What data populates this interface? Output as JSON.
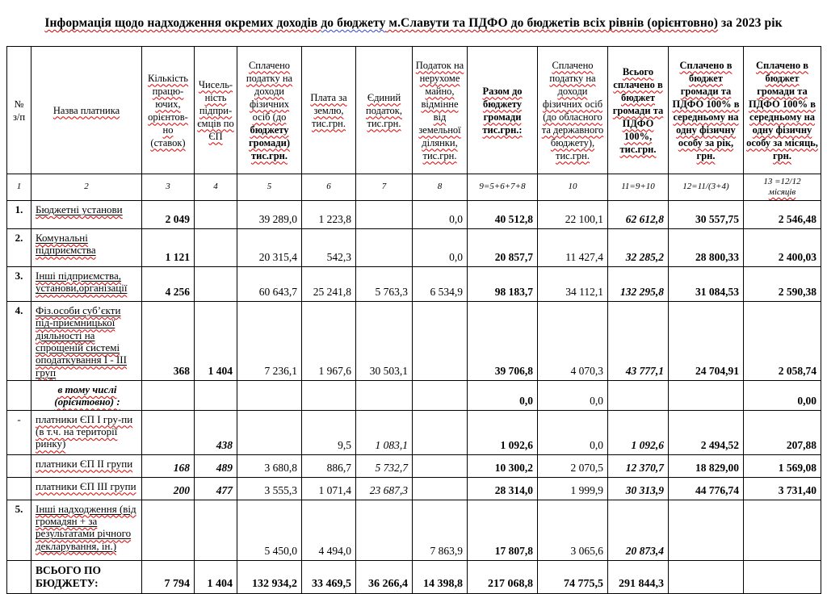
{
  "title": {
    "p1": "Інформація щодо надходження окремих доходів ",
    "p2": "до бюджету",
    "p3": " м.Славути та ПДФО до бюджетів всіх рівнів (орієнтовно)",
    "p4": " за 2023 рік"
  },
  "colors": {
    "spell_red": "#d40000",
    "spell_blue": "#3344cc",
    "border": "#000000",
    "text": "#000000"
  },
  "table": {
    "headers": [
      {
        "t": "№ з/п",
        "sp": false
      },
      {
        "t": "Назва платника"
      },
      {
        "t": "Кількість працю-ючих, орієнтов-но (ставок)"
      },
      {
        "t": "Чисель-ність підпри-ємців по ЄП"
      },
      {
        "t": "Сплачено податку на доходи фізичних осіб (до ",
        "t2": "бюджету громади) тис.грн."
      },
      {
        "t": "Плата за землю, тис.грн."
      },
      {
        "t": "Єдиний податок, тис.грн."
      },
      {
        "t": "Податок на нерухоме майно, відмінне від земельної ділянки, тис.грн."
      },
      {
        "t": "Разом до бюджету громади тис.грн.:",
        "b": true
      },
      {
        "t": "Сплачено податку на доходи фізичних осіб (до обласного та державного бюджету), тис.грн."
      },
      {
        "t": "Всього сплачено в бюджет громади та ПДФО 100%, тис.грн.",
        "b": true
      },
      {
        "t": "Сплачено в бюджет громади та ПДФО 100% в середньому на одну фізичну особу за рік, грн.",
        "b": true
      },
      {
        "t": "Сплачено в бюджет громади та ПДФО 100% в середньому на одну фізичну особу за місяць, грн.",
        "b": true
      }
    ],
    "numbering": [
      {
        "t": "1"
      },
      {
        "t": "2"
      },
      {
        "t": "3"
      },
      {
        "t": "4"
      },
      {
        "t": "5"
      },
      {
        "t": "6"
      },
      {
        "t": "7"
      },
      {
        "t": "8"
      },
      {
        "t": "9=5+6+7+8"
      },
      {
        "t": "10"
      },
      {
        "t": "11=9+10"
      },
      {
        "t": "12=11/(3+4)"
      },
      {
        "t": "13 =12/12",
        "sp": "місяців"
      }
    ],
    "rows": [
      {
        "num": "1.",
        "name": "Бюджетні установи",
        "ns": "u",
        "cells": [
          {
            "v": "2 049",
            "s": "b"
          },
          {
            "v": ""
          },
          {
            "v": "39 289,0"
          },
          {
            "v": "1 223,8"
          },
          {
            "v": ""
          },
          {
            "v": "0,0"
          },
          {
            "v": "40 512,8",
            "s": "b"
          },
          {
            "v": "22 100,1"
          },
          {
            "v": "62 612,8",
            "s": "bi"
          },
          {
            "v": "30 557,75",
            "s": "b"
          },
          {
            "v": "2 546,48",
            "s": "b"
          }
        ]
      },
      {
        "num": "2.",
        "name": "Комунальні підприємства",
        "ns": "u",
        "cells": [
          {
            "v": "1 121",
            "s": "b"
          },
          {
            "v": ""
          },
          {
            "v": "20 315,4"
          },
          {
            "v": "542,3"
          },
          {
            "v": ""
          },
          {
            "v": "0,0"
          },
          {
            "v": "20 857,7",
            "s": "b"
          },
          {
            "v": "11 427,4"
          },
          {
            "v": "32 285,2",
            "s": "bi"
          },
          {
            "v": "28 800,33",
            "s": "b"
          },
          {
            "v": "2 400,03",
            "s": "b"
          }
        ]
      },
      {
        "num": "3.",
        "name": "Інші підприємства, установи,організації",
        "ns": "u",
        "cells": [
          {
            "v": "4 256",
            "s": "b"
          },
          {
            "v": ""
          },
          {
            "v": "60 643,7"
          },
          {
            "v": "25 241,8"
          },
          {
            "v": "5 763,3"
          },
          {
            "v": "6 534,9"
          },
          {
            "v": "98 183,7",
            "s": "b"
          },
          {
            "v": "34 112,1"
          },
          {
            "v": "132 295,8",
            "s": "bi"
          },
          {
            "v": "31 084,53",
            "s": "b"
          },
          {
            "v": "2 590,38",
            "s": "b"
          }
        ]
      },
      {
        "num": "4.",
        "name": "Фіз.особи суб’єкти під-приємницької діяльності на спрощеній системі оподаткування І - ІІІ груп",
        "ns": "u",
        "cells": [
          {
            "v": "368",
            "s": "b"
          },
          {
            "v": "1 404",
            "s": "b"
          },
          {
            "v": "7 236,1"
          },
          {
            "v": "1 967,6"
          },
          {
            "v": "30 503,1"
          },
          {
            "v": ""
          },
          {
            "v": "39 706,8",
            "s": "b"
          },
          {
            "v": "4 070,3"
          },
          {
            "v": "43 777,1",
            "s": "bi"
          },
          {
            "v": "24 704,91",
            "s": "b"
          },
          {
            "v": "2 058,74",
            "s": "b"
          }
        ]
      },
      {
        "num": "",
        "name": "в тому числі (орієнтовно) :",
        "ns": "c",
        "cells": [
          {
            "v": ""
          },
          {
            "v": ""
          },
          {
            "v": ""
          },
          {
            "v": ""
          },
          {
            "v": ""
          },
          {
            "v": ""
          },
          {
            "v": "0,0",
            "s": "b"
          },
          {
            "v": "0,0"
          },
          {
            "v": ""
          },
          {
            "v": ""
          },
          {
            "v": "0,00",
            "s": "b"
          }
        ]
      },
      {
        "num": "-",
        "name": "платники ЄП І гру-пи (в т.ч. на території ринку)",
        "ns": "sp",
        "cells": [
          {
            "v": ""
          },
          {
            "v": "438",
            "s": "bi"
          },
          {
            "v": ""
          },
          {
            "v": "9,5"
          },
          {
            "v": "1 083,1",
            "s": "i"
          },
          {
            "v": ""
          },
          {
            "v": "1 092,6",
            "s": "b"
          },
          {
            "v": "0,0"
          },
          {
            "v": "1 092,6",
            "s": "bi"
          },
          {
            "v": "2 494,52",
            "s": "b"
          },
          {
            "v": "207,88",
            "s": "b"
          }
        ]
      },
      {
        "num": "",
        "name": "платники ЄП ІІ групи",
        "ns": "sp",
        "cells": [
          {
            "v": "168",
            "s": "bi"
          },
          {
            "v": "489",
            "s": "bi"
          },
          {
            "v": "3 680,8"
          },
          {
            "v": "886,7"
          },
          {
            "v": "5 732,7",
            "s": "i"
          },
          {
            "v": ""
          },
          {
            "v": "10 300,2",
            "s": "b"
          },
          {
            "v": "2 070,5"
          },
          {
            "v": "12 370,7",
            "s": "bi"
          },
          {
            "v": "18 829,00",
            "s": "b"
          },
          {
            "v": "1 569,08",
            "s": "b"
          }
        ]
      },
      {
        "num": "",
        "name": "платники ЄП ІІІ групи",
        "ns": "sp",
        "cells": [
          {
            "v": "200",
            "s": "bi"
          },
          {
            "v": "477",
            "s": "bi"
          },
          {
            "v": "3 555,3"
          },
          {
            "v": "1 071,4"
          },
          {
            "v": "23 687,3",
            "s": "i"
          },
          {
            "v": ""
          },
          {
            "v": "28 314,0",
            "s": "b"
          },
          {
            "v": "1 999,9"
          },
          {
            "v": "30 313,9",
            "s": "bi"
          },
          {
            "v": "44 776,74",
            "s": "b"
          },
          {
            "v": "3 731,40",
            "s": "b"
          }
        ]
      },
      {
        "num": "5.",
        "name": "Інші надходження (від громадян + за результатами річного декларування,  ін.)",
        "ns": "u",
        "cells": [
          {
            "v": ""
          },
          {
            "v": ""
          },
          {
            "v": "5 450,0"
          },
          {
            "v": "4 494,0"
          },
          {
            "v": ""
          },
          {
            "v": "7 863,9"
          },
          {
            "v": "17 807,8",
            "s": "b"
          },
          {
            "v": "3 065,6"
          },
          {
            "v": "20 873,4",
            "s": "bi"
          },
          {
            "v": ""
          },
          {
            "v": ""
          }
        ]
      },
      {
        "num": "",
        "name": "ВСЬОГО ПО БЮДЖЕТУ:",
        "ns": "t",
        "cells": [
          {
            "v": "7 794",
            "s": "b"
          },
          {
            "v": "1 404",
            "s": "b"
          },
          {
            "v": "132 934,2",
            "s": "b"
          },
          {
            "v": "33 469,5",
            "s": "b"
          },
          {
            "v": "36 266,4",
            "s": "b"
          },
          {
            "v": "14 398,8",
            "s": "b"
          },
          {
            "v": "217 068,8",
            "s": "b"
          },
          {
            "v": "74 775,5",
            "s": "b"
          },
          {
            "v": "291 844,3",
            "s": "b"
          },
          {
            "v": ""
          },
          {
            "v": ""
          }
        ]
      }
    ]
  }
}
